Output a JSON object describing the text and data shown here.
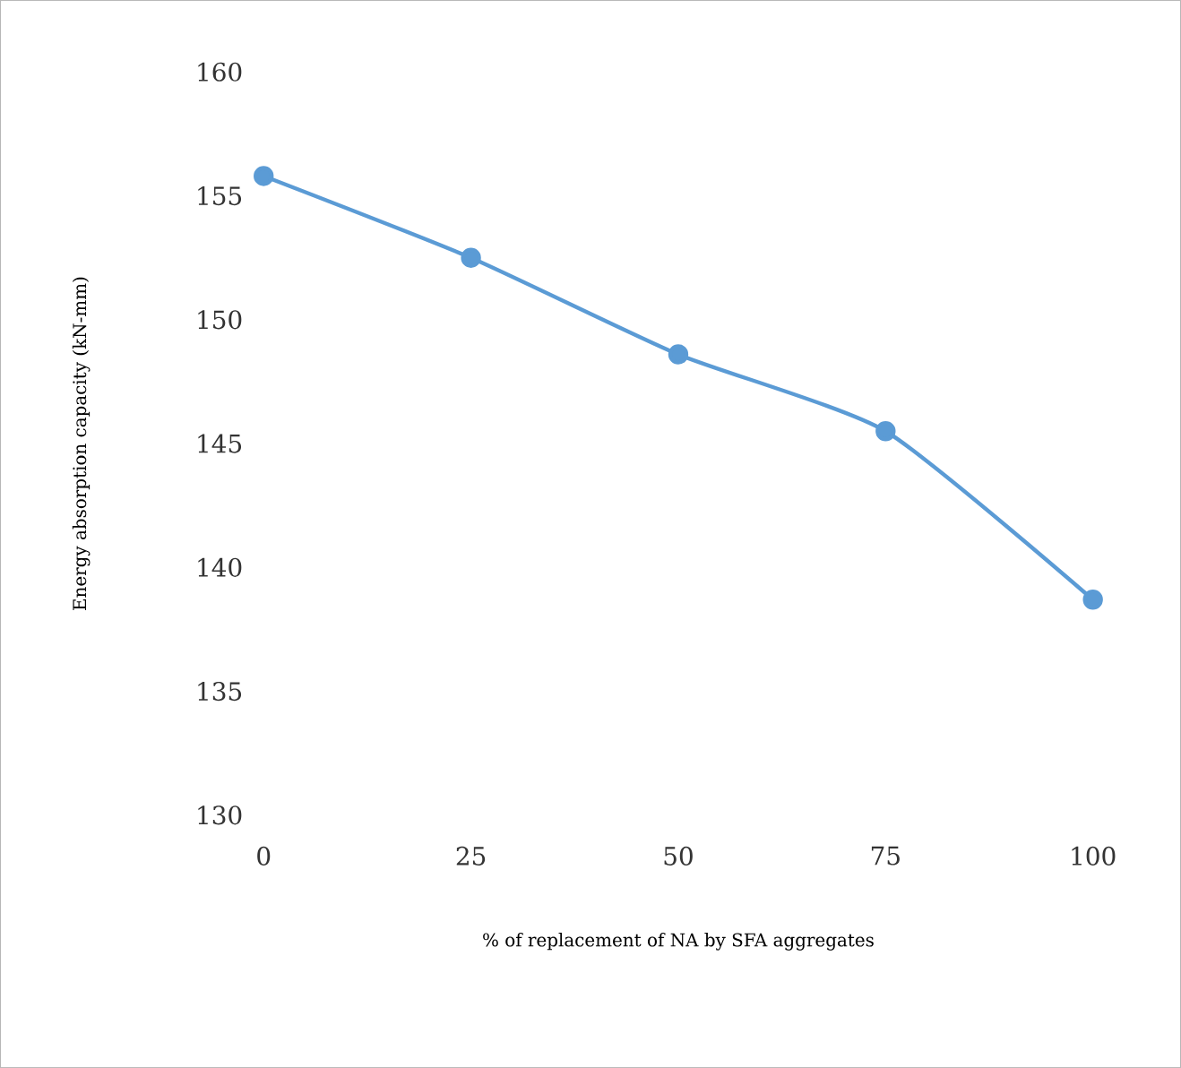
{
  "chart_data": {
    "type": "line",
    "xlabel": "% of replacement of NA by SFA aggregates",
    "ylabel": "Energy absorption capacity (kN-mm)",
    "categories": [
      "0",
      "25",
      "50",
      "75",
      "100"
    ],
    "series": [
      {
        "color": "#5b9bd5",
        "values": [
          155.8,
          152.5,
          148.6,
          145.5,
          138.7
        ]
      }
    ],
    "ylim": [
      130,
      160
    ],
    "yticks": [
      130,
      135,
      140,
      145,
      150,
      155,
      160
    ],
    "marker": "circle",
    "line_style": "solid",
    "grid": false
  }
}
